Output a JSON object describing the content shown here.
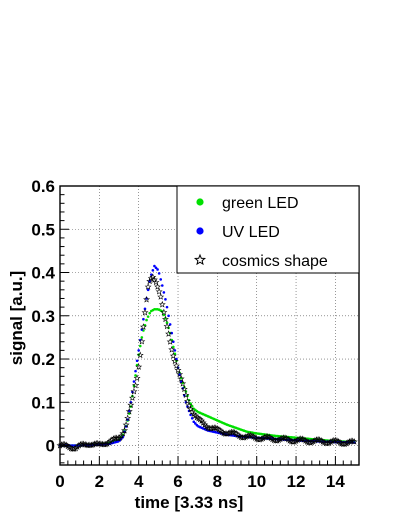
{
  "chart_data": {
    "type": "scatter",
    "title": "",
    "xlabel": "time [3.33 ns]",
    "ylabel": "signal [a.u.]",
    "xlim": [
      0,
      15.2
    ],
    "ylim": [
      -0.045,
      0.6
    ],
    "x_ticks": [
      0,
      2,
      4,
      6,
      8,
      10,
      12,
      14
    ],
    "y_ticks": [
      0,
      0.1,
      0.2,
      0.3,
      0.4,
      0.5,
      0.6
    ],
    "x_tick_labels": [
      "0",
      "2",
      "4",
      "6",
      "8",
      "10",
      "12",
      "14"
    ],
    "y_tick_labels": [
      "0",
      "0.1",
      "0.2",
      "0.3",
      "0.4",
      "0.5",
      "0.6"
    ],
    "grid": true,
    "legend_position": "top-right",
    "series": [
      {
        "name": "green LED",
        "color": "#00e000",
        "marker": "circle",
        "points": [
          [
            0,
            0
          ],
          [
            1,
            0
          ],
          [
            2,
            0.003
          ],
          [
            2.5,
            0.006
          ],
          [
            3,
            0.012
          ],
          [
            3.2,
            0.025
          ],
          [
            3.4,
            0.05
          ],
          [
            3.6,
            0.09
          ],
          [
            3.8,
            0.15
          ],
          [
            4,
            0.21
          ],
          [
            4.2,
            0.26
          ],
          [
            4.4,
            0.29
          ],
          [
            4.6,
            0.31
          ],
          [
            4.8,
            0.315
          ],
          [
            5,
            0.315
          ],
          [
            5.2,
            0.31
          ],
          [
            5.4,
            0.29
          ],
          [
            5.6,
            0.26
          ],
          [
            5.8,
            0.22
          ],
          [
            6,
            0.18
          ],
          [
            6.2,
            0.15
          ],
          [
            6.4,
            0.125
          ],
          [
            6.6,
            0.1
          ],
          [
            6.8,
            0.085
          ],
          [
            7,
            0.078
          ],
          [
            7.5,
            0.068
          ],
          [
            8,
            0.058
          ],
          [
            8.5,
            0.048
          ],
          [
            9,
            0.04
          ],
          [
            9.5,
            0.032
          ],
          [
            10,
            0.028
          ],
          [
            11,
            0.022
          ],
          [
            12,
            0.018
          ],
          [
            13,
            0.014
          ],
          [
            14,
            0.01
          ],
          [
            15,
            0.008
          ]
        ]
      },
      {
        "name": "UV LED",
        "color": "#0000ff",
        "marker": "circle",
        "points": [
          [
            0,
            0
          ],
          [
            1,
            0
          ],
          [
            2,
            0.002
          ],
          [
            2.5,
            0.004
          ],
          [
            3,
            0.01
          ],
          [
            3.2,
            0.02
          ],
          [
            3.4,
            0.05
          ],
          [
            3.6,
            0.1
          ],
          [
            3.8,
            0.16
          ],
          [
            4,
            0.22
          ],
          [
            4.2,
            0.28
          ],
          [
            4.4,
            0.34
          ],
          [
            4.6,
            0.39
          ],
          [
            4.8,
            0.415
          ],
          [
            5,
            0.405
          ],
          [
            5.2,
            0.37
          ],
          [
            5.4,
            0.33
          ],
          [
            5.6,
            0.28
          ],
          [
            5.8,
            0.23
          ],
          [
            6,
            0.18
          ],
          [
            6.2,
            0.14
          ],
          [
            6.4,
            0.1
          ],
          [
            6.6,
            0.075
          ],
          [
            6.8,
            0.055
          ],
          [
            7,
            0.045
          ],
          [
            7.5,
            0.035
          ],
          [
            8,
            0.03
          ],
          [
            8.5,
            0.025
          ],
          [
            9,
            0.022
          ],
          [
            9.5,
            0.02
          ],
          [
            10,
            0.018
          ],
          [
            11,
            0.015
          ],
          [
            12,
            0.012
          ],
          [
            13,
            0.01
          ],
          [
            14,
            0.008
          ],
          [
            15,
            0.007
          ]
        ]
      },
      {
        "name": "cosmics shape",
        "color": "#000000",
        "marker": "star",
        "points": [
          [
            0,
            0
          ],
          [
            0.8,
            -0.005
          ],
          [
            1.5,
            0.005
          ],
          [
            2,
            0
          ],
          [
            2.5,
            0.01
          ],
          [
            3,
            0.015
          ],
          [
            3.3,
            0.04
          ],
          [
            3.6,
            0.09
          ],
          [
            3.9,
            0.15
          ],
          [
            4.1,
            0.22
          ],
          [
            4.3,
            0.3
          ],
          [
            4.5,
            0.37
          ],
          [
            4.7,
            0.39
          ],
          [
            4.9,
            0.38
          ],
          [
            5.1,
            0.35
          ],
          [
            5.3,
            0.3
          ],
          [
            5.5,
            0.26
          ],
          [
            5.7,
            0.22
          ],
          [
            5.9,
            0.19
          ],
          [
            6.1,
            0.16
          ],
          [
            6.3,
            0.13
          ],
          [
            6.5,
            0.1
          ],
          [
            6.8,
            0.075
          ],
          [
            7,
            0.06
          ],
          [
            7.5,
            0.045
          ],
          [
            8,
            0.035
          ],
          [
            8.5,
            0.03
          ],
          [
            9,
            0.025
          ],
          [
            9.5,
            0.02
          ],
          [
            10,
            0.018
          ],
          [
            11,
            0.015
          ],
          [
            12,
            0.012
          ],
          [
            13,
            0.01
          ],
          [
            14,
            0.008
          ],
          [
            15,
            0.006
          ]
        ]
      }
    ]
  }
}
